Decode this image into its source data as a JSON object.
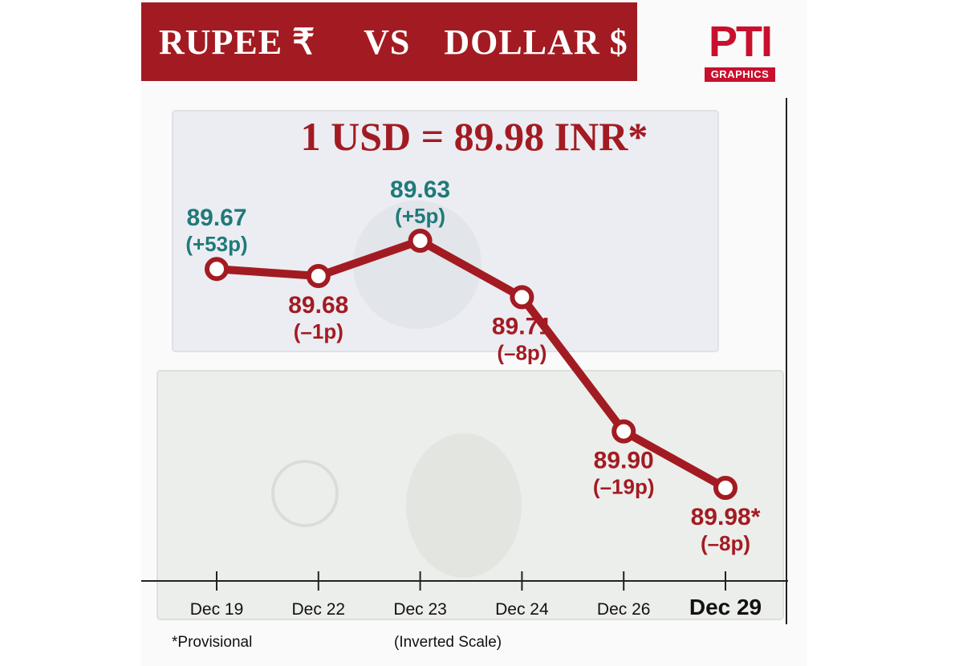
{
  "banner": {
    "left": "RUPEE ₹",
    "mid": "VS",
    "right": "DOLLAR $"
  },
  "logo": {
    "mark": "PTI",
    "sub": "GRAPHICS"
  },
  "headline": "1 USD = 89.98 INR*",
  "footnote": "*Provisional",
  "scale_note": "(Inverted Scale)",
  "colors": {
    "brand": "#a31b22",
    "gain": "#1f7a7a",
    "loss": "#a31b22"
  },
  "chart_data": {
    "type": "line",
    "title": "1 USD = 89.98 INR*",
    "categories": [
      "Dec 19",
      "Dec 22",
      "Dec 23",
      "Dec 24",
      "Dec 26",
      "Dec 29"
    ],
    "values": [
      89.67,
      89.68,
      89.63,
      89.71,
      89.9,
      89.98
    ],
    "value_labels": [
      "89.67",
      "89.68",
      "89.63",
      "89.71",
      "89.90",
      "89.98*"
    ],
    "changes": [
      "(+53p)",
      "(–1p)",
      "(+5p)",
      "(–8p)",
      "(–19p)",
      "(–8p)"
    ],
    "trend": [
      "gain",
      "loss",
      "gain",
      "loss",
      "loss",
      "loss"
    ],
    "inverted_y": true,
    "ylim": [
      89.6,
      90.0
    ],
    "xlabel": "",
    "ylabel": "",
    "grid": false
  }
}
